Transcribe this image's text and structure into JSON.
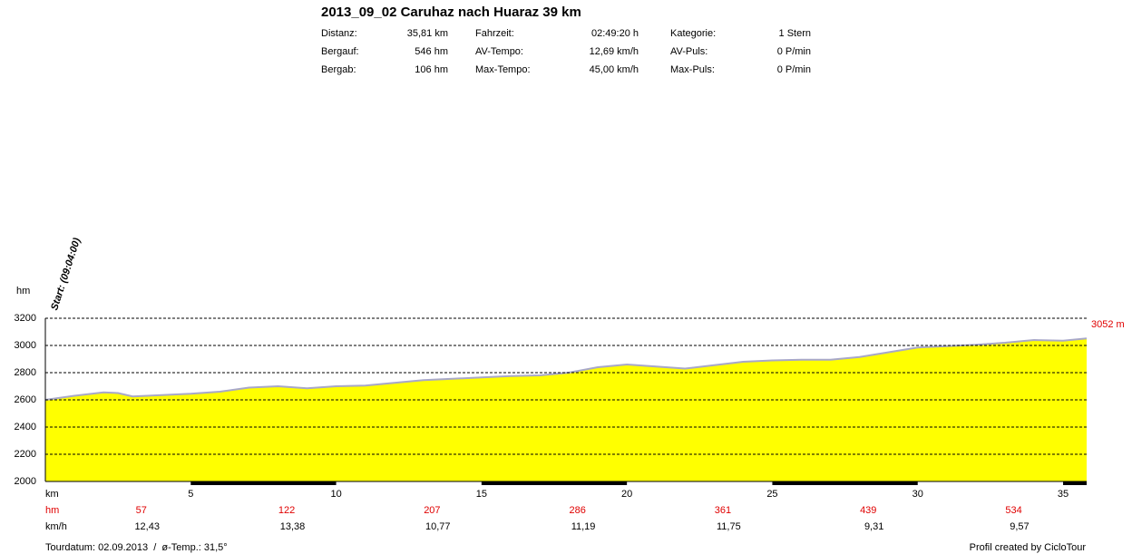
{
  "header": {
    "title": "2013_09_02 Caruhaz nach Huaraz 39 km",
    "stats": [
      [
        {
          "label": "Distanz:",
          "value": "35,81 km"
        },
        {
          "label": "Fahrzeit:",
          "value": "02:49:20 h"
        },
        {
          "label": "Kategorie:",
          "value": "1 Stern"
        }
      ],
      [
        {
          "label": "Bergauf:",
          "value": "546 hm"
        },
        {
          "label": "AV-Tempo:",
          "value": "12,69 km/h"
        },
        {
          "label": "AV-Puls:",
          "value": "0 P/min"
        }
      ],
      [
        {
          "label": "Bergab:",
          "value": "106 hm"
        },
        {
          "label": "Max-Tempo:",
          "value": "45,00 km/h"
        },
        {
          "label": "Max-Puls:",
          "value": "0 P/min"
        }
      ]
    ]
  },
  "chart_data": {
    "type": "area",
    "x": [
      0,
      1,
      2,
      2.5,
      3,
      4,
      5,
      6,
      7,
      8,
      9,
      10,
      11,
      12,
      13,
      14,
      15,
      16,
      17,
      18,
      19,
      20,
      21,
      22,
      23,
      24,
      25,
      26,
      27,
      28,
      29,
      30,
      31,
      32,
      33,
      34,
      35,
      35.81
    ],
    "values": [
      2600,
      2630,
      2655,
      2650,
      2625,
      2635,
      2645,
      2660,
      2690,
      2700,
      2685,
      2700,
      2705,
      2725,
      2745,
      2755,
      2765,
      2775,
      2780,
      2800,
      2840,
      2860,
      2845,
      2830,
      2855,
      2880,
      2890,
      2895,
      2895,
      2915,
      2950,
      2985,
      2995,
      3005,
      3020,
      3040,
      3035,
      3052
    ],
    "color": "#ffff00",
    "line_color": "#a8a8c8",
    "xlabel": "km",
    "ylabel": "hm",
    "xlim": [
      0,
      35.81
    ],
    "ylim": [
      2000,
      3200
    ],
    "xticks": [
      5,
      10,
      15,
      20,
      25,
      30,
      35
    ],
    "yticks": [
      2000,
      2200,
      2400,
      2600,
      2800,
      3000,
      3200
    ],
    "grid": true,
    "start_label": "Start: (09:04:00)",
    "end_label": {
      "value": 3052,
      "label": "3052 m"
    },
    "rows": [
      {
        "name": "hm",
        "color": "#e00000",
        "values": [
          57,
          122,
          207,
          286,
          361,
          439,
          534
        ]
      },
      {
        "name": "km/h",
        "color": "#000000",
        "values": [
          12.43,
          13.38,
          10.77,
          11.19,
          11.75,
          9.31,
          9.57
        ],
        "value_labels": [
          "12,43",
          "13,38",
          "10,77",
          "11,19",
          "11,75",
          "9,31",
          "9,57"
        ]
      }
    ]
  },
  "footer": {
    "left": "Tourdatum: 02.09.2013  /  ø-Temp.: 31,5°",
    "right": "Profil created by CicloTour"
  }
}
